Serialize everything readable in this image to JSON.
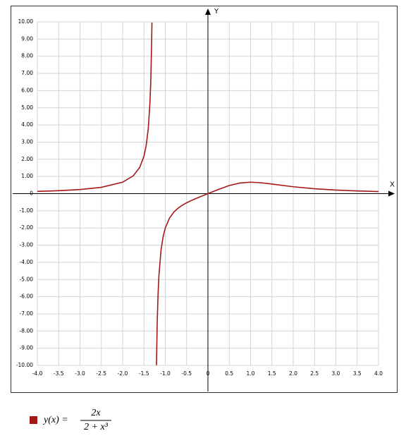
{
  "chart_data": {
    "type": "line",
    "x_label": "X",
    "y_label": "Y",
    "xlim": [
      -4,
      4
    ],
    "ylim": [
      -10,
      10
    ],
    "xticks": [
      {
        "value": -4,
        "label": "-4.0"
      },
      {
        "value": -3.5,
        "label": "-3.5"
      },
      {
        "value": -3,
        "label": "-3.0"
      },
      {
        "value": -2.5,
        "label": "-2.5"
      },
      {
        "value": -2,
        "label": "-2.0"
      },
      {
        "value": -1.5,
        "label": "-1.5"
      },
      {
        "value": -1,
        "label": "-1.0"
      },
      {
        "value": -0.5,
        "label": "-0.5"
      },
      0,
      0.5,
      {
        "value": 1,
        "label": "1.0"
      },
      1.5,
      {
        "value": 2,
        "label": "2.0"
      },
      2.5,
      {
        "value": 3,
        "label": "3.0"
      },
      3.5,
      {
        "value": 4,
        "label": "4.0"
      }
    ],
    "yticks": [
      {
        "value": 10,
        "label": "10.00"
      },
      {
        "value": 9,
        "label": "9.00"
      },
      {
        "value": 8,
        "label": "8.00"
      },
      {
        "value": 7,
        "label": "7.00"
      },
      {
        "value": 6,
        "label": "6.00"
      },
      {
        "value": 5,
        "label": "5.00"
      },
      {
        "value": 4,
        "label": "4.00"
      },
      {
        "value": 3,
        "label": "3.00"
      },
      {
        "value": 2,
        "label": "2.00"
      },
      {
        "value": 1,
        "label": "1.00"
      },
      0,
      {
        "value": -1,
        "label": "-1.00"
      },
      {
        "value": -2,
        "label": "-2.00"
      },
      {
        "value": -3,
        "label": "-3.00"
      },
      {
        "value": -4,
        "label": "-4.00"
      },
      {
        "value": -5,
        "label": "-5.00"
      },
      {
        "value": -6,
        "label": "-6.00"
      },
      {
        "value": -7,
        "label": "-7.00"
      },
      {
        "value": -8,
        "label": "-8.00"
      },
      {
        "value": -9,
        "label": "-9.00"
      },
      {
        "value": -10,
        "label": "-10.00"
      }
    ],
    "grid": true,
    "x": [
      -4,
      -3.5,
      -3,
      -2.5,
      -2,
      -1.75,
      -1.6,
      -1.5,
      -1.45,
      -1.4,
      -1.36,
      -1.34,
      -1.32,
      -1.313,
      null,
      -1.207,
      -1.19,
      -1.17,
      -1.15,
      -1.1,
      -1.05,
      -1,
      -0.9,
      -0.8,
      -0.7,
      -0.6,
      -0.5,
      -0.4,
      -0.3,
      -0.2,
      -0.1,
      0,
      0.25,
      0.5,
      0.75,
      1,
      1.25,
      1.5,
      2,
      2.5,
      3,
      3.5,
      4
    ],
    "series": [
      {
        "name": "y(x) =",
        "numerator": "2x",
        "denominator": "2 + x³",
        "color": "#a31818",
        "values": [
          0.129,
          0.171,
          0.24,
          0.367,
          0.667,
          1.042,
          1.527,
          2.182,
          2.766,
          3.763,
          5.276,
          6.599,
          8.8,
          9.962,
          null,
          -9.99,
          -7.56,
          -5.873,
          -4.801,
          -3.288,
          -2.493,
          -2,
          -1.416,
          -1.075,
          -0.845,
          -0.673,
          -0.533,
          -0.413,
          -0.304,
          -0.201,
          -0.1,
          0,
          0.248,
          0.471,
          0.619,
          0.667,
          0.632,
          0.558,
          0.4,
          0.284,
          0.207,
          0.156,
          0.121
        ]
      }
    ]
  }
}
